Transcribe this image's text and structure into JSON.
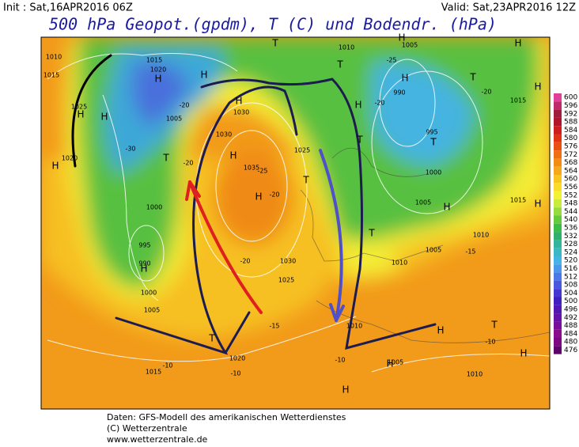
{
  "header": {
    "init": "Init : Sat,16APR2016 06Z",
    "valid": "Valid: Sat,23APR2016 12Z",
    "title": "500 hPa Geopot.(gpdm), T (C) und Bodendr. (hPa)"
  },
  "footer": [
    "Daten: GFS-Modell des amerikanischen Wetterdienstes",
    "(C) Wetterzentrale",
    "www.wetterzentrale.de"
  ],
  "colorbar": {
    "labels": [
      600,
      596,
      592,
      588,
      584,
      580,
      576,
      572,
      568,
      564,
      560,
      556,
      552,
      548,
      544,
      540,
      536,
      532,
      528,
      524,
      520,
      516,
      512,
      508,
      504,
      500,
      496,
      492,
      488,
      484,
      480,
      476
    ],
    "colors": [
      "#e0409a",
      "#c02a6a",
      "#a01e3c",
      "#b4142a",
      "#cc1e1e",
      "#e03214",
      "#ea5014",
      "#f06e14",
      "#f48c14",
      "#f6a818",
      "#f8c41e",
      "#f8dc28",
      "#f4f034",
      "#c8ec3c",
      "#96dc3c",
      "#64cc3c",
      "#3cbc48",
      "#30b070",
      "#34b49c",
      "#3cb8c4",
      "#44b4e6",
      "#4898ec",
      "#4c78e8",
      "#4c58e0",
      "#4438d0",
      "#4020c0",
      "#5018b4",
      "#6414a8",
      "#78109c",
      "#8c0c90",
      "#7c0884",
      "#5c0468"
    ]
  },
  "map_labels": [
    "1010",
    "1015",
    "1015",
    "1020",
    "1025",
    "1005",
    "1020",
    "1000",
    "995",
    "990",
    "1000",
    "1005",
    "1015",
    "1020",
    "1025",
    "1030",
    "1035",
    "1030",
    "1030",
    "1025",
    "1005",
    "1010",
    "990",
    "995",
    "1000",
    "1005",
    "1015",
    "1010",
    "1005",
    "1010",
    "1015",
    "1005",
    "1010",
    "1010",
    "-20",
    "-25",
    "-20",
    "-20",
    "-25",
    "-20",
    "-20",
    "-15",
    "-15",
    "-10",
    "-10",
    "-10",
    "-10",
    "-30",
    "-20"
  ],
  "systems": [
    "H",
    "H",
    "H",
    "H",
    "H",
    "H",
    "H",
    "H",
    "H",
    "H",
    "H",
    "H",
    "H",
    "H",
    "H",
    "H",
    "H",
    "H",
    "H",
    "H",
    "T",
    "T",
    "T",
    "T",
    "T",
    "T",
    "T",
    "T",
    "T",
    "T"
  ]
}
